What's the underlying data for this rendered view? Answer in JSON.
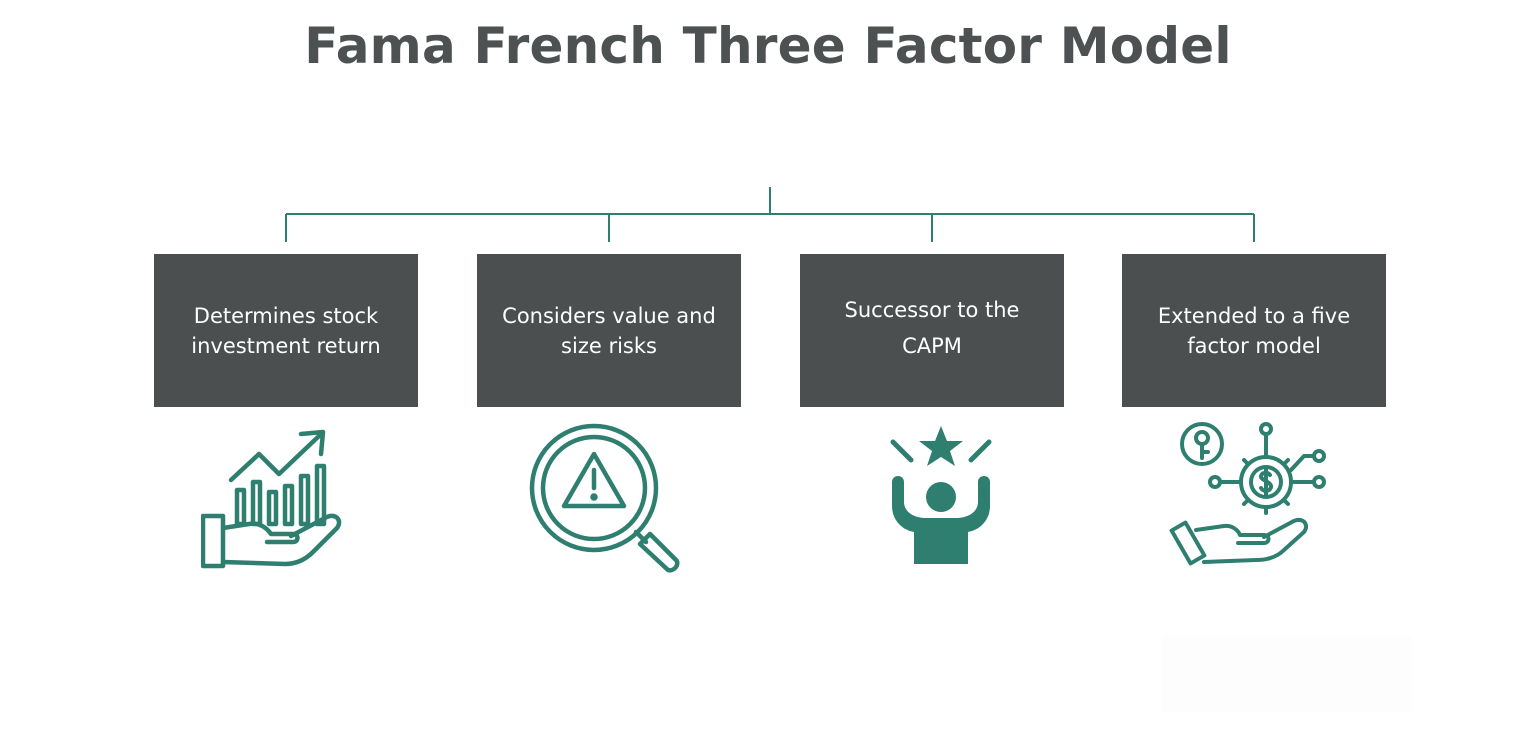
{
  "title": "Fama French Three Factor Model",
  "colors": {
    "title": "#4d5152",
    "box_fill": "#4b4f50",
    "box_text": "#ffffff",
    "accent": "#2f7f70",
    "background": "#ffffff"
  },
  "items": [
    {
      "text": "Determines stock investment return",
      "icon": "growth-chart-in-hand-icon"
    },
    {
      "text": "Considers value and size risks",
      "icon": "magnifier-warning-icon"
    },
    {
      "text": "Successor to the CAPM",
      "icon": "person-with-star-icon"
    },
    {
      "text": "Extended to a five factor model",
      "icon": "money-network-in-hand-icon"
    }
  ]
}
